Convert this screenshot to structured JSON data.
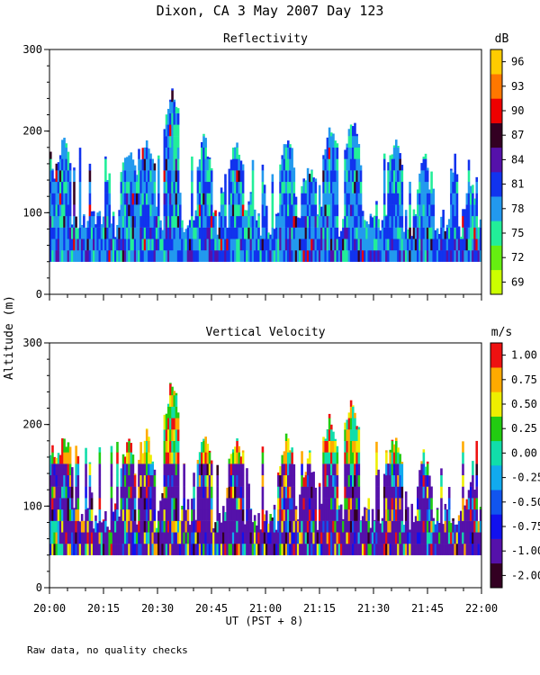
{
  "header": {
    "title": "Dixon, CA  3 May 2007  Day 123"
  },
  "x_axis": {
    "label": "UT  (PST + 8)",
    "tick_labels": [
      "20:00",
      "20:15",
      "20:30",
      "20:45",
      "21:00",
      "21:15",
      "21:30",
      "21:45",
      "22:00"
    ],
    "range_min": [
      0,
      120
    ]
  },
  "y_axis": {
    "label": "Altitude (m)",
    "tick_labels": [
      "0",
      "100",
      "200",
      "300"
    ],
    "range": [
      0,
      300
    ]
  },
  "footnote": "Raw data, no quality checks",
  "chart_data": [
    {
      "type": "heatmap",
      "title": "Reflectivity",
      "colorbar_unit": "dB",
      "colorbar_labels": [
        "69",
        "72",
        "75",
        "78",
        "81",
        "84",
        "87",
        "90",
        "93",
        "96"
      ],
      "colorbar_colors": [
        "#ccff00",
        "#66ee11",
        "#22ee99",
        "#2299ee",
        "#1133ee",
        "#5511aa",
        "#330022",
        "#ee0000",
        "#ff7700",
        "#ffcc00"
      ],
      "xlabel": "UT  (PST + 8)",
      "ylabel": "Altitude (m)",
      "xlim_minutes": [
        0,
        120
      ],
      "ylim": [
        0,
        300
      ],
      "data_floor_altitude_m": 40,
      "peak_tops_m": [
        {
          "t_min": 0,
          "alt": 180
        },
        {
          "t_min": 4,
          "alt": 200
        },
        {
          "t_min": 22,
          "alt": 190
        },
        {
          "t_min": 27,
          "alt": 200
        },
        {
          "t_min": 34,
          "alt": 260
        },
        {
          "t_min": 43,
          "alt": 200
        },
        {
          "t_min": 52,
          "alt": 200
        },
        {
          "t_min": 66,
          "alt": 200
        },
        {
          "t_min": 72,
          "alt": 170
        },
        {
          "t_min": 78,
          "alt": 220
        },
        {
          "t_min": 84,
          "alt": 225
        },
        {
          "t_min": 96,
          "alt": 200
        },
        {
          "t_min": 104,
          "alt": 175
        },
        {
          "t_min": 117,
          "alt": 140
        }
      ]
    },
    {
      "type": "heatmap",
      "title": "Vertical Velocity",
      "colorbar_unit": "m/s",
      "colorbar_labels": [
        "-2.00",
        "-1.00",
        "-0.75",
        "-0.50",
        "-0.25",
        "0.00",
        "0.25",
        "0.50",
        "0.75",
        "1.00"
      ],
      "colorbar_colors": [
        "#330022",
        "#5511aa",
        "#1111ee",
        "#1155ee",
        "#11aaee",
        "#11ddaa",
        "#22cc11",
        "#eeee00",
        "#ffaa00",
        "#ee1111"
      ],
      "xlabel": "UT  (PST + 8)",
      "ylabel": "Altitude (m)",
      "xlim_minutes": [
        0,
        120
      ],
      "ylim": [
        0,
        300
      ],
      "data_floor_altitude_m": 40,
      "peak_tops_m": [
        {
          "t_min": 0,
          "alt": 180
        },
        {
          "t_min": 4,
          "alt": 200
        },
        {
          "t_min": 22,
          "alt": 190
        },
        {
          "t_min": 27,
          "alt": 200
        },
        {
          "t_min": 34,
          "alt": 260
        },
        {
          "t_min": 43,
          "alt": 200
        },
        {
          "t_min": 52,
          "alt": 200
        },
        {
          "t_min": 66,
          "alt": 200
        },
        {
          "t_min": 72,
          "alt": 170
        },
        {
          "t_min": 78,
          "alt": 220
        },
        {
          "t_min": 84,
          "alt": 240
        },
        {
          "t_min": 96,
          "alt": 200
        },
        {
          "t_min": 104,
          "alt": 175
        },
        {
          "t_min": 117,
          "alt": 140
        }
      ]
    }
  ]
}
